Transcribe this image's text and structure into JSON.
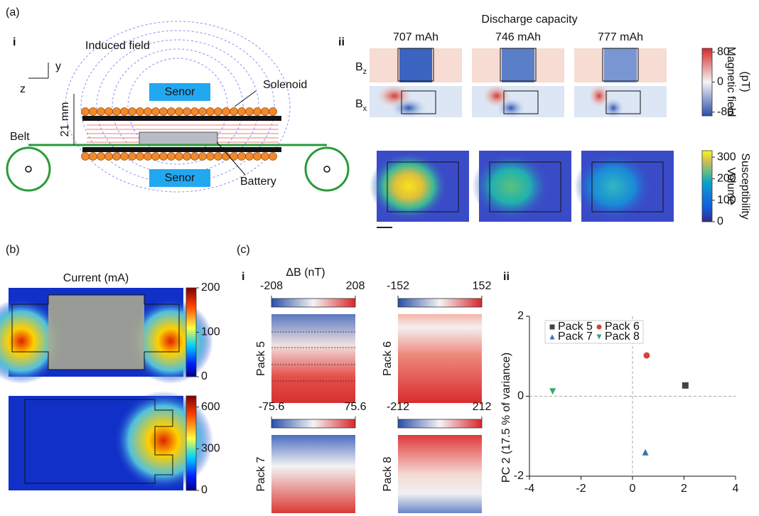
{
  "panel_a": {
    "label": "(a)"
  },
  "panel_a_i": {
    "label": "i",
    "axis_y": "y",
    "axis_z": "z",
    "induced_field": "Induced field",
    "solenoid": "Solenoid",
    "sensor_top": "Senor",
    "sensor_bottom": "Senor",
    "distance": "21 mm",
    "belt": "Belt",
    "battery": "Battery"
  },
  "panel_a_ii": {
    "label": "ii",
    "title": "Discharge capacity",
    "columns": [
      "707 mAh",
      "746 mAh",
      "777 mAh"
    ],
    "row_labels": [
      {
        "base": "B",
        "sub": "z"
      },
      {
        "base": "B",
        "sub": "x"
      }
    ],
    "field_colorbar": {
      "label": [
        "Magnetic field",
        "(pT)"
      ],
      "lim": [
        -90,
        90
      ],
      "ticks": [
        80,
        0,
        -80
      ]
    },
    "susceptibility_colorbar": {
      "label": [
        "Volume",
        "Susceptibility"
      ],
      "lim": [
        0,
        330
      ],
      "ticks": [
        300,
        200,
        100,
        0
      ]
    }
  },
  "panel_b": {
    "label": "(b)",
    "title": "Current (mA)",
    "colorbars": [
      {
        "lim": [
          0,
          200
        ],
        "ticks": [
          200,
          100,
          0
        ]
      },
      {
        "lim": [
          0,
          680
        ],
        "ticks": [
          600,
          300,
          0
        ]
      }
    ]
  },
  "panel_c": {
    "label": "(c)",
    "i": {
      "label": "i",
      "title": "ΔB (nT)",
      "packs": [
        {
          "name": "Pack 5",
          "lim": [
            -208,
            208
          ],
          "ticks": [
            -208,
            208
          ]
        },
        {
          "name": "Pack 6",
          "lim": [
            -152,
            152
          ],
          "ticks": [
            -152,
            152
          ]
        },
        {
          "name": "Pack 7",
          "lim": [
            -75.6,
            75.6
          ],
          "ticks": [
            -75.6,
            75.6
          ]
        },
        {
          "name": "Pack 8",
          "lim": [
            -212,
            212
          ],
          "ticks": [
            -212,
            212
          ]
        }
      ]
    },
    "ii": {
      "label": "ii"
    }
  },
  "chart_data": {
    "type": "scatter",
    "ylabel": "PC 2 (17.5 % of variance)",
    "xlim": [
      -4,
      4
    ],
    "xticks": [
      -4,
      -2,
      0,
      2,
      4
    ],
    "ylim": [
      -2,
      2
    ],
    "yticks": [
      -2,
      0,
      2
    ],
    "legend": "upper left",
    "series": [
      {
        "name": "Pack 5",
        "color": "#444444",
        "marker": "square",
        "x": [
          2.05
        ],
        "values": [
          0.27
        ]
      },
      {
        "name": "Pack 6",
        "color": "#d9413c",
        "marker": "circle",
        "x": [
          0.55
        ],
        "values": [
          1.02
        ]
      },
      {
        "name": "Pack 7",
        "color": "#3a6fb8",
        "marker": "triangle-up",
        "x": [
          0.5
        ],
        "values": [
          -1.4
        ]
      },
      {
        "name": "Pack 8",
        "color": "#35a86b",
        "marker": "triangle-down",
        "x": [
          -3.1
        ],
        "values": [
          0.12
        ]
      }
    ]
  }
}
